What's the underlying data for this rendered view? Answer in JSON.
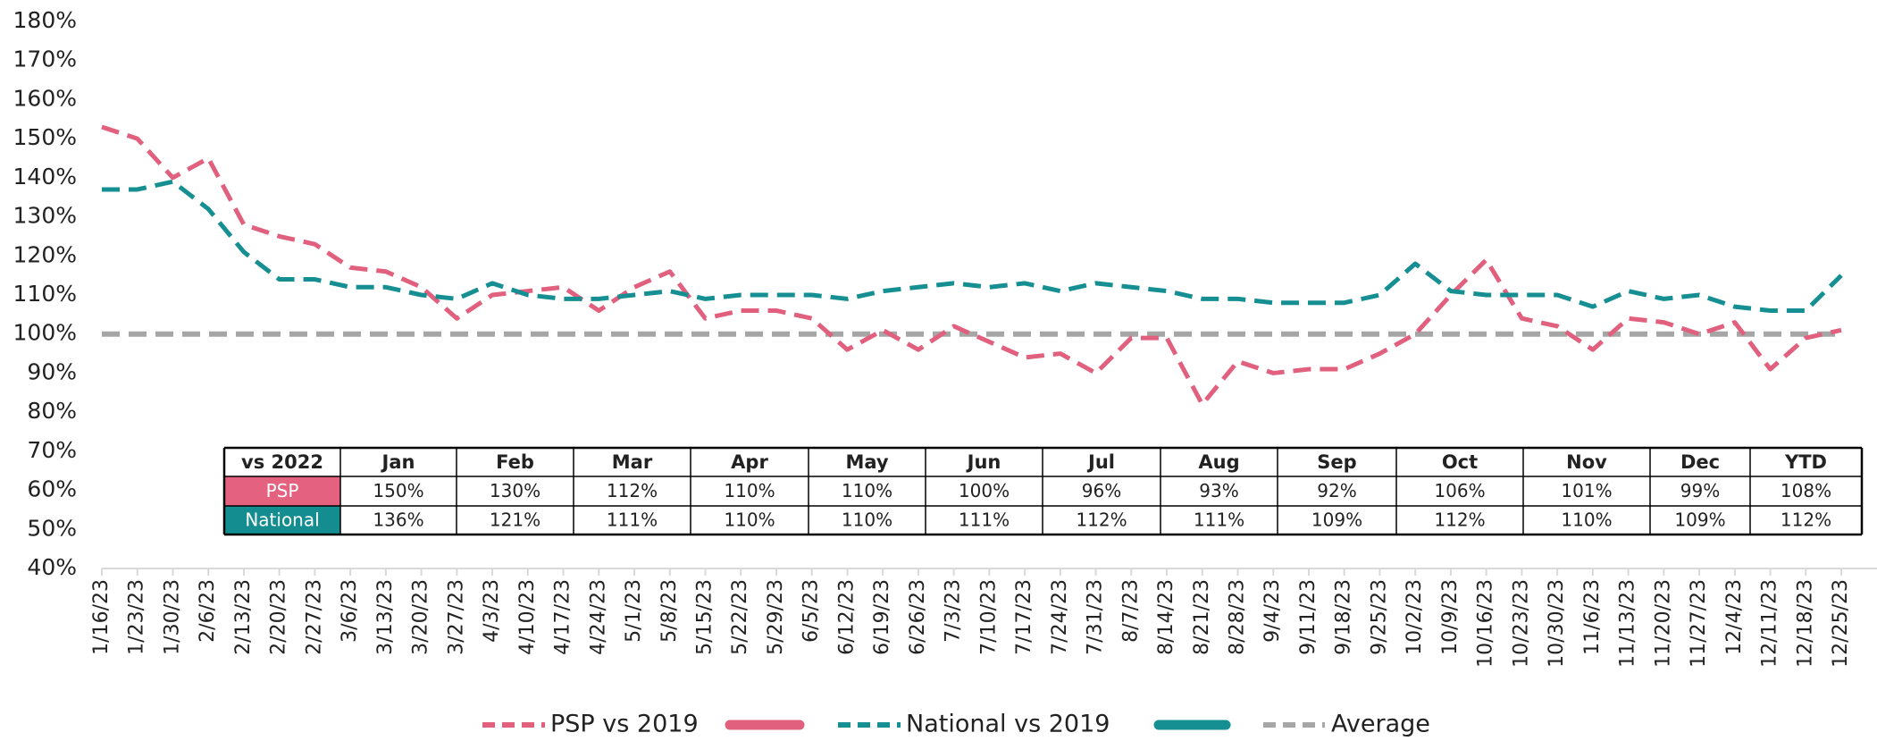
{
  "chart_data": {
    "type": "line",
    "x": [
      "1/16/23",
      "1/23/23",
      "1/30/23",
      "2/6/23",
      "2/13/23",
      "2/20/23",
      "2/27/23",
      "3/6/23",
      "3/13/23",
      "3/20/23",
      "3/27/23",
      "4/3/23",
      "4/10/23",
      "4/17/23",
      "4/24/23",
      "5/1/23",
      "5/8/23",
      "5/15/23",
      "5/22/23",
      "5/29/23",
      "6/5/23",
      "6/12/23",
      "6/19/23",
      "6/26/23",
      "7/3/23",
      "7/10/23",
      "7/17/23",
      "7/24/23",
      "7/31/23",
      "8/7/23",
      "8/14/23",
      "8/21/23",
      "8/28/23",
      "9/4/23",
      "9/11/23",
      "9/18/23",
      "9/25/23",
      "10/2/23",
      "10/9/23",
      "10/16/23",
      "10/23/23",
      "10/30/23",
      "11/6/23",
      "11/13/23",
      "11/20/23",
      "11/27/23",
      "12/4/23",
      "12/11/23",
      "12/18/23",
      "12/25/23"
    ],
    "series": [
      {
        "name": "PSP vs 2019",
        "color": "#e0607e",
        "values": [
          153,
          150,
          140,
          145,
          128,
          125,
          123,
          117,
          116,
          112,
          104,
          110,
          111,
          112,
          106,
          112,
          116,
          104,
          106,
          106,
          104,
          96,
          101,
          96,
          102,
          98,
          94,
          95,
          90,
          99,
          99,
          82,
          93,
          90,
          91,
          91,
          95,
          100,
          110,
          119,
          104,
          102,
          96,
          104,
          103,
          100,
          103,
          91,
          99,
          101
        ]
      },
      {
        "name": "National vs 2019",
        "color": "#168f92",
        "values": [
          137,
          137,
          139,
          132,
          121,
          114,
          114,
          112,
          112,
          110,
          109,
          113,
          110,
          109,
          109,
          110,
          111,
          109,
          110,
          110,
          110,
          109,
          111,
          112,
          113,
          112,
          113,
          111,
          113,
          112,
          111,
          109,
          109,
          108,
          108,
          108,
          110,
          118,
          111,
          110,
          110,
          110,
          107,
          111,
          109,
          110,
          107,
          106,
          106,
          115
        ]
      },
      {
        "name": "Average",
        "color": "#a6a6a6",
        "values": [
          100,
          100,
          100,
          100,
          100,
          100,
          100,
          100,
          100,
          100,
          100,
          100,
          100,
          100,
          100,
          100,
          100,
          100,
          100,
          100,
          100,
          100,
          100,
          100,
          100,
          100,
          100,
          100,
          100,
          100,
          100,
          100,
          100,
          100,
          100,
          100,
          100,
          100,
          100,
          100,
          100,
          100,
          100,
          100,
          100,
          100,
          100,
          100,
          100,
          100
        ]
      }
    ],
    "ylim": [
      40,
      180
    ],
    "yticks": [
      {
        "value": 40,
        "label": "40%"
      },
      {
        "value": 50,
        "label": "50%"
      },
      {
        "value": 60,
        "label": "60%"
      },
      {
        "value": 70,
        "label": "70%"
      },
      {
        "value": 80,
        "label": "80%"
      },
      {
        "value": 90,
        "label": "90%"
      },
      {
        "value": 100,
        "label": "100%"
      },
      {
        "value": 110,
        "label": "110%"
      },
      {
        "value": 120,
        "label": "120%"
      },
      {
        "value": 130,
        "label": "130%"
      },
      {
        "value": 140,
        "label": "140%"
      },
      {
        "value": 150,
        "label": "150%"
      },
      {
        "value": 160,
        "label": "160%"
      },
      {
        "value": 170,
        "label": "170%"
      },
      {
        "value": 180,
        "label": "180%"
      }
    ],
    "table": {
      "header": [
        "vs 2022",
        "Jan",
        "Feb",
        "Mar",
        "Apr",
        "May",
        "Jun",
        "Jul",
        "Aug",
        "Sep",
        "Oct",
        "Nov",
        "Dec",
        "YTD"
      ],
      "rows": [
        [
          "PSP",
          "150%",
          "130%",
          "112%",
          "110%",
          "110%",
          "100%",
          "96%",
          "93%",
          "92%",
          "106%",
          "101%",
          "99%",
          "108%"
        ],
        [
          "National",
          "136%",
          "121%",
          "111%",
          "110%",
          "110%",
          "111%",
          "112%",
          "111%",
          "109%",
          "112%",
          "110%",
          "109%",
          "112%"
        ]
      ]
    }
  }
}
